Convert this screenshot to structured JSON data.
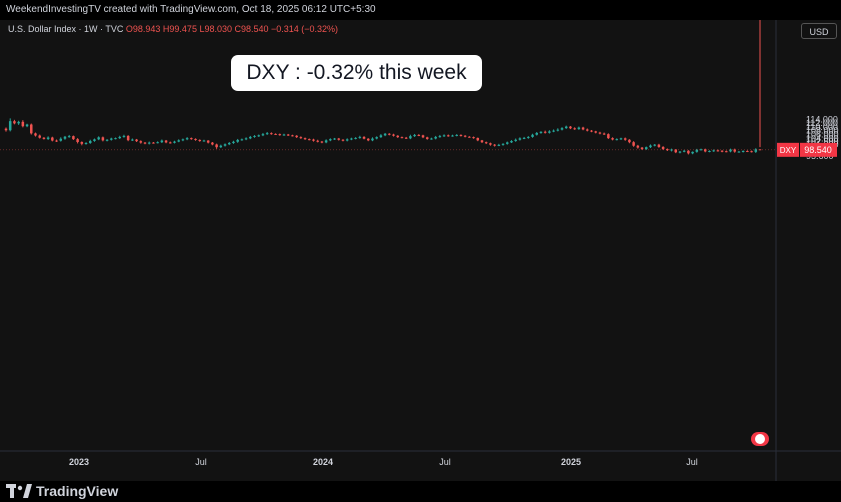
{
  "header": {
    "attribution": "WeekendInvestingTV created with TradingView.com, Oct 18, 2025 06:12 UTC+5:30"
  },
  "legend": {
    "symbol": "U.S. Dollar Index · 1W · TVC",
    "ohlc": "O98.943 H99.475 L98.030 C98.540 −0.314 (−0.32%)"
  },
  "currency": "USD",
  "annotation": "DXY : -0.32% this week",
  "brand": "TradingView",
  "colors": {
    "up": "#26a69a",
    "down": "#ef5350",
    "bg": "#121212",
    "axis_text": "#d1d4dc"
  },
  "chart_data": {
    "type": "candlestick",
    "symbol": "DXY",
    "last_value": 98.54,
    "last_value_label": "98.540",
    "y_ticks": [
      "114.000",
      "112.000",
      "110.000",
      "108.000",
      "106.000",
      "104.000",
      "102.500",
      "101.000",
      "99.500",
      "98.000",
      "96.800",
      "95.600"
    ],
    "y_log": true,
    "x_ticks": [
      "2023",
      "Jul",
      "2024",
      "Jul",
      "2025",
      "Jul"
    ],
    "grid": false,
    "close": [
      108.2,
      113.0,
      111.8,
      112.6,
      110.3,
      111.2,
      106.6,
      105.5,
      104.4,
      103.8,
      104.5,
      103.0,
      102.9,
      103.9,
      104.9,
      105.2,
      103.7,
      102.3,
      101.4,
      101.8,
      102.8,
      103.6,
      104.6,
      103.1,
      103.4,
      104.0,
      104.2,
      104.8,
      105.3,
      103.2,
      103.5,
      102.7,
      102.0,
      101.6,
      102.0,
      101.9,
      102.2,
      103.0,
      102.1,
      101.9,
      102.5,
      103.1,
      103.6,
      104.2,
      103.8,
      103.3,
      102.8,
      103.0,
      102.0,
      101.1,
      99.8,
      100.5,
      101.2,
      101.8,
      102.4,
      103.3,
      103.6,
      104.1,
      104.8,
      105.3,
      105.6,
      106.2,
      106.7,
      106.3,
      106.2,
      105.8,
      106.0,
      105.6,
      105.4,
      104.7,
      104.2,
      103.7,
      103.5,
      102.9,
      102.5,
      102.1,
      103.1,
      103.7,
      104.0,
      103.4,
      103.0,
      103.6,
      104.0,
      104.3,
      104.8,
      103.9,
      103.1,
      104.0,
      104.7,
      105.6,
      106.4,
      106.0,
      105.4,
      104.7,
      104.4,
      104.1,
      105.2,
      105.8,
      105.6,
      104.6,
      103.8,
      104.0,
      104.8,
      105.2,
      105.6,
      105.3,
      105.5,
      105.8,
      105.4,
      104.9,
      104.7,
      104.3,
      103.1,
      102.2,
      101.7,
      101.0,
      100.6,
      100.9,
      101.4,
      102.1,
      102.8,
      103.4,
      104.1,
      104.3,
      104.8,
      105.9,
      106.8,
      107.4,
      106.9,
      107.6,
      108.0,
      108.5,
      109.3,
      110.1,
      109.2,
      108.8,
      109.6,
      108.6,
      108.0,
      107.6,
      107.0,
      106.5,
      106.2,
      104.2,
      103.5,
      103.7,
      104.1,
      103.4,
      102.2,
      100.5,
      99.6,
      98.9,
      99.8,
      100.6,
      101.0,
      99.9,
      98.9,
      98.4,
      98.7,
      97.4,
      97.7,
      98.1,
      96.9,
      97.6,
      98.6,
      98.8,
      97.8,
      98.0,
      98.3,
      98.1,
      97.9,
      97.8,
      98.7,
      97.7,
      97.7,
      98.0,
      97.9,
      97.6,
      98.8,
      98.5
    ],
    "open_first": 109.0,
    "high_extra": [
      0.6,
      1.5,
      0.7,
      0.6,
      0.9,
      0.4,
      0.5,
      0.4,
      0.5,
      0.3,
      0.6,
      0.4,
      0.5,
      0.7,
      0.4,
      0.6,
      0.3,
      0.5,
      0.3,
      0.4,
      0.6,
      0.4,
      0.5,
      0.4,
      0.3,
      0.4,
      0.3,
      0.6,
      0.6,
      0.4,
      0.5,
      0.3,
      0.4,
      0.3,
      0.5,
      0.3,
      0.4,
      0.5,
      0.3,
      0.4,
      0.4,
      0.5,
      0.4,
      0.5,
      0.3,
      0.3,
      0.3,
      0.4,
      0.2,
      0.3,
      0.4,
      0.5,
      0.4,
      0.5,
      0.5,
      0.5,
      0.4,
      0.5,
      0.5,
      0.4,
      0.4,
      0.6,
      0.6,
      0.4,
      0.3,
      0.3,
      0.4,
      0.3,
      0.3,
      0.3,
      0.4,
      0.3,
      0.3,
      0.4,
      0.5,
      0.3,
      0.5,
      0.4,
      0.3,
      0.3,
      0.3,
      0.5,
      0.4,
      0.4,
      0.6,
      0.4,
      0.3,
      0.6,
      0.4,
      0.6,
      0.4,
      0.3,
      0.4,
      0.3,
      0.3,
      0.4,
      0.7,
      0.5,
      0.4,
      0.3,
      0.3,
      0.4,
      0.5,
      0.6,
      0.5,
      0.4,
      0.4,
      0.4,
      0.3,
      0.3,
      0.3,
      0.3,
      0.2,
      0.2,
      0.3,
      0.3,
      0.3,
      0.5,
      0.3,
      0.4,
      0.4,
      0.6,
      0.5,
      0.5,
      0.4,
      0.5,
      0.5,
      0.3,
      0.6,
      0.6,
      0.6,
      0.7,
      0.5,
      0.5,
      0.3,
      0.5,
      0.5,
      0.4,
      0.5,
      0.3,
      0.3,
      0.4,
      0.5,
      0.4,
      0.4,
      0.4,
      0.3,
      0.4,
      0.3,
      0.5,
      0.4,
      0.3,
      0.3,
      0.5,
      0.3,
      0.4,
      0.4,
      0.3,
      0.4,
      0.2,
      0.3,
      0.4,
      0.3,
      0.2,
      0.4,
      0.3,
      0.3,
      0.3,
      0.4,
      0.4,
      0.3,
      0.3,
      0.4,
      0.4,
      0.3,
      0.3,
      0.3,
      0.3,
      0.5,
      1.0
    ],
    "low_extra": [
      0.7,
      0.6,
      0.5,
      0.8,
      0.6,
      0.5,
      0.6,
      0.5,
      0.4,
      0.3,
      0.5,
      0.4,
      0.6,
      0.4,
      0.5,
      0.5,
      0.4,
      0.7,
      0.7,
      0.4,
      0.4,
      0.4,
      0.4,
      0.5,
      0.5,
      0.4,
      0.4,
      0.4,
      0.4,
      0.5,
      0.4,
      0.4,
      0.5,
      0.4,
      0.5,
      0.4,
      0.3,
      0.4,
      0.4,
      0.4,
      0.3,
      0.3,
      0.4,
      0.4,
      0.4,
      0.4,
      0.4,
      0.3,
      0.4,
      0.4,
      0.8,
      0.4,
      0.4,
      0.4,
      0.4,
      0.5,
      0.4,
      0.4,
      0.4,
      0.4,
      0.5,
      0.4,
      0.4,
      0.4,
      0.4,
      0.4,
      0.4,
      0.3,
      0.4,
      0.4,
      0.4,
      0.4,
      0.4,
      0.4,
      0.4,
      0.4,
      0.4,
      0.4,
      0.4,
      0.4,
      0.4,
      0.4,
      0.4,
      0.4,
      0.4,
      0.3,
      0.4,
      0.4,
      0.4,
      0.4,
      0.4,
      0.4,
      0.4,
      0.4,
      0.3,
      0.3,
      0.4,
      0.4,
      0.4,
      0.4,
      0.4,
      0.4,
      0.4,
      0.4,
      0.4,
      0.4,
      0.4,
      0.4,
      0.4,
      0.3,
      0.3,
      0.4,
      0.4,
      0.4,
      0.4,
      0.5,
      0.5,
      0.3,
      0.4,
      0.4,
      0.3,
      0.4,
      0.4,
      0.4,
      0.4,
      0.4,
      0.4,
      0.4,
      0.4,
      0.4,
      0.4,
      0.4,
      0.4,
      0.4,
      0.4,
      0.4,
      0.4,
      0.4,
      0.4,
      0.4,
      0.4,
      0.4,
      0.4,
      0.4,
      0.4,
      0.4,
      0.4,
      0.5,
      0.5,
      0.5,
      0.5,
      0.4,
      0.4,
      0.4,
      0.4,
      0.4,
      0.4,
      0.4,
      0.6,
      0.4,
      0.5,
      0.3,
      0.5,
      0.4,
      0.4,
      0.4,
      0.4,
      0.4,
      0.4,
      0.4,
      0.5,
      0.4,
      0.4,
      0.5,
      0.4,
      0.4,
      0.4,
      0.3,
      0.5
    ]
  }
}
